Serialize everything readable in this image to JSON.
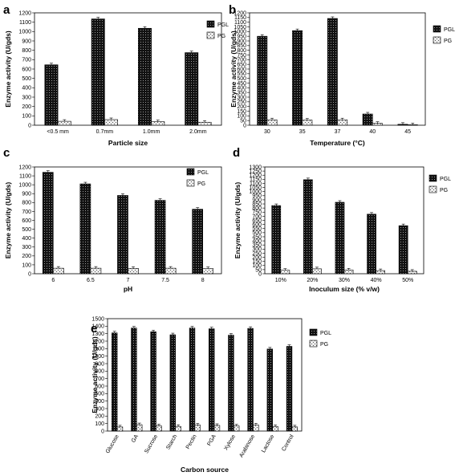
{
  "chart_data": [
    {
      "panel": "a",
      "type": "bar",
      "categories": [
        "<0.5 mm",
        "0.7mm",
        "1.0mm",
        "2.0mm"
      ],
      "series": [
        {
          "name": "PGL",
          "values": [
            645,
            1135,
            1035,
            775
          ]
        },
        {
          "name": "PG",
          "values": [
            42,
            60,
            38,
            32
          ]
        }
      ],
      "xlabel": "Particle size",
      "ylabel": "Enzyme activity (U/gds)",
      "ylim": [
        0,
        1200
      ],
      "yticks": [
        0,
        100,
        200,
        300,
        400,
        500,
        600,
        700,
        800,
        900,
        1000,
        1100,
        1200
      ],
      "legend": "top-right"
    },
    {
      "panel": "b",
      "type": "bar",
      "categories": [
        "30",
        "35",
        "37",
        "40",
        "45"
      ],
      "series": [
        {
          "name": "PGL",
          "values": [
            950,
            1010,
            1140,
            120,
            10
          ]
        },
        {
          "name": "PG",
          "values": [
            58,
            55,
            58,
            20,
            5
          ]
        }
      ],
      "xlabel": "Temperature (°C)",
      "ylabel": "Enzyme activity (U/gds)",
      "ylim": [
        0,
        1200
      ],
      "yticks": [
        0,
        50,
        100,
        150,
        200,
        250,
        300,
        350,
        400,
        450,
        500,
        550,
        600,
        650,
        700,
        750,
        800,
        850,
        900,
        950,
        1000,
        1050,
        1100,
        1150,
        1200
      ],
      "legend": "top-right"
    },
    {
      "panel": "c",
      "type": "bar",
      "categories": [
        "6",
        "6.5",
        "7",
        "7.5",
        "8"
      ],
      "series": [
        {
          "name": "PGL",
          "values": [
            1140,
            1010,
            880,
            825,
            725
          ]
        },
        {
          "name": "PG",
          "values": [
            62,
            62,
            60,
            62,
            58
          ]
        }
      ],
      "xlabel": "pH",
      "ylabel": "Enzyme activity (U/gds)",
      "ylim": [
        0,
        1200
      ],
      "yticks": [
        0,
        100,
        200,
        300,
        400,
        500,
        600,
        700,
        800,
        900,
        1000,
        1100,
        1200
      ],
      "legend": "top-right"
    },
    {
      "panel": "d",
      "type": "bar",
      "categories": [
        "10%",
        "20%",
        "30%",
        "40%",
        "50%"
      ],
      "series": [
        {
          "name": "PGL",
          "values": [
            830,
            1145,
            870,
            725,
            585
          ]
        },
        {
          "name": "PG",
          "values": [
            42,
            60,
            45,
            38,
            30
          ]
        }
      ],
      "xlabel": "Inoculum size (% v/w)",
      "ylabel": "Enzyme activity (U/gds)",
      "ylim": [
        0,
        1300
      ],
      "yticks": [
        0,
        50,
        100,
        150,
        200,
        250,
        300,
        350,
        400,
        450,
        500,
        550,
        600,
        650,
        700,
        750,
        800,
        850,
        900,
        950,
        1000,
        1050,
        1100,
        1150,
        1200,
        1250,
        1300
      ],
      "legend": "top-right"
    },
    {
      "panel": "e",
      "type": "bar",
      "categories": [
        "Glucose",
        "GA",
        "Sucrose",
        "Starch",
        "Pectin",
        "PGA",
        "Xylose",
        "Arabinose",
        "Lactose",
        "Control"
      ],
      "series": [
        {
          "name": "PGL",
          "values": [
            1310,
            1375,
            1325,
            1285,
            1375,
            1365,
            1280,
            1370,
            1095,
            1130
          ]
        },
        {
          "name": "PG",
          "values": [
            55,
            85,
            70,
            62,
            80,
            75,
            68,
            82,
            60,
            55
          ]
        }
      ],
      "xlabel": "Carbon source",
      "ylabel": "Enzyme activity (U/gds)",
      "ylim": [
        0,
        1500
      ],
      "yticks": [
        0,
        100,
        200,
        300,
        400,
        500,
        600,
        700,
        800,
        900,
        1000,
        1100,
        1200,
        1300,
        1400,
        1500
      ],
      "legend": "top-right"
    }
  ]
}
